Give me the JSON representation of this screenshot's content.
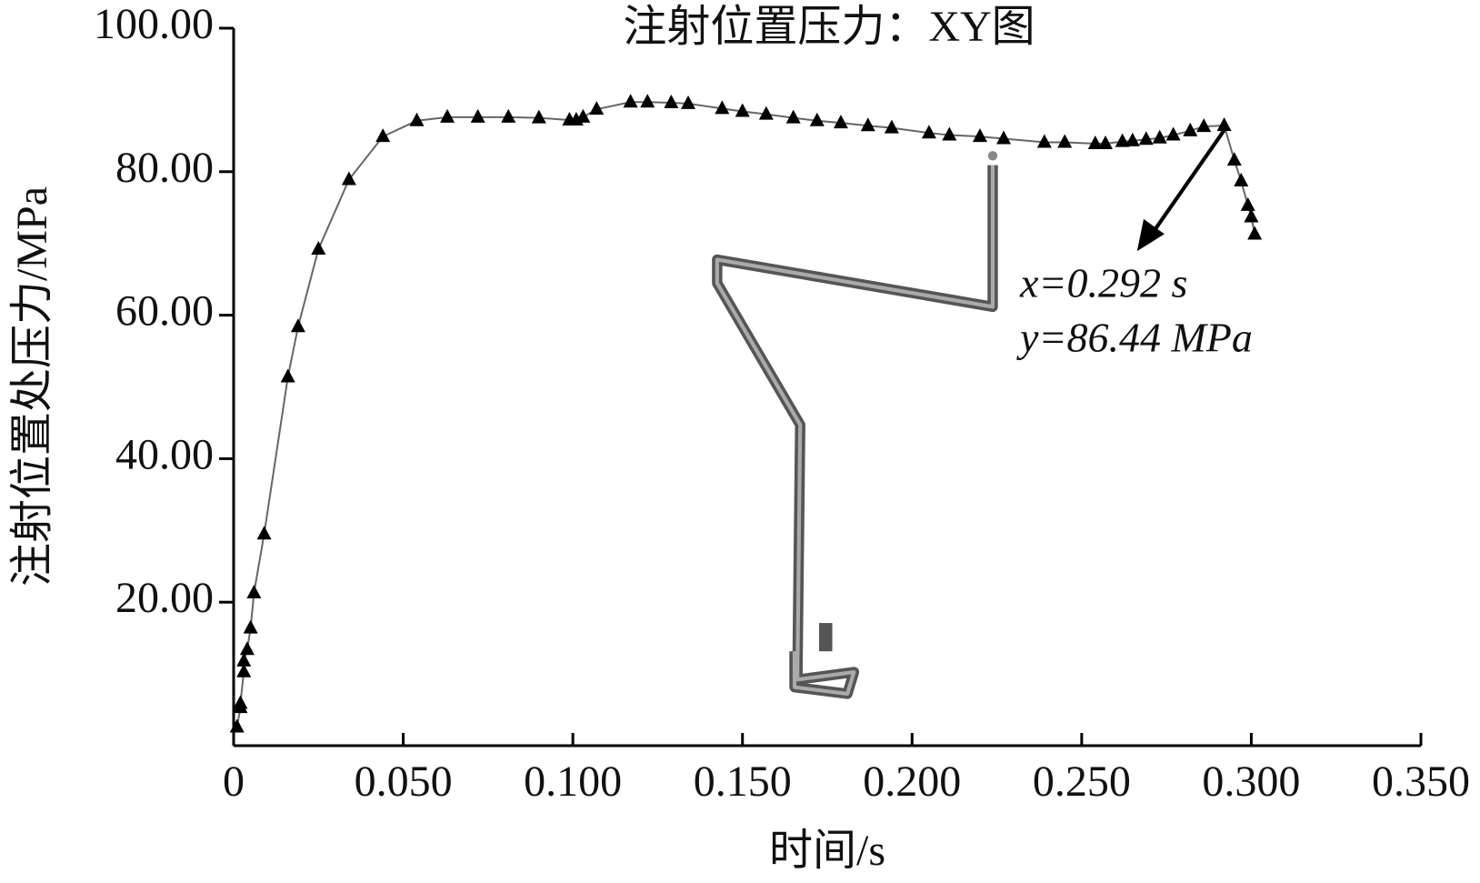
{
  "chart_data": {
    "type": "line",
    "title": "注射位置压力：XY图",
    "x_label": "时间/s",
    "y_label": "注射位置处压力/MPa",
    "annotation_lines": [
      "x=0.292 s",
      "y=86.44 MPa"
    ],
    "xlim": [
      0,
      0.35
    ],
    "ylim": [
      0,
      100
    ],
    "xticks": [
      0,
      {
        "value": 0.05,
        "label": "0.050"
      },
      {
        "value": 0.1,
        "label": "0.100"
      },
      {
        "value": 0.15,
        "label": "0.150"
      },
      {
        "value": 0.2,
        "label": "0.200"
      },
      {
        "value": 0.25,
        "label": "0.250"
      },
      {
        "value": 0.3,
        "label": "0.300"
      },
      {
        "value": 0.35,
        "label": "0.350"
      }
    ],
    "yticks": [
      {
        "value": 20,
        "label": "20.00"
      },
      {
        "value": 40,
        "label": "40.00"
      },
      {
        "value": 60,
        "label": "60.00"
      },
      {
        "value": 80,
        "label": "80.00"
      },
      {
        "value": 100,
        "label": "100.00"
      }
    ],
    "line_color": "#666666",
    "series": [
      {
        "color": "#000000",
        "x": [
          0.001,
          0.002,
          0.002,
          0.003,
          0.003,
          0.004,
          0.005,
          0.006,
          0.009,
          0.016,
          0.019,
          0.025,
          0.034,
          0.044,
          0.054,
          0.063,
          0.072,
          0.081,
          0.09,
          0.099,
          0.101,
          0.103,
          0.107,
          0.117,
          0.122,
          0.129,
          0.134,
          0.144,
          0.15,
          0.157,
          0.165,
          0.172,
          0.179,
          0.187,
          0.194,
          0.205,
          0.211,
          0.22,
          0.227,
          0.239,
          0.245,
          0.254,
          0.257,
          0.262,
          0.265,
          0.269,
          0.273,
          0.277,
          0.282,
          0.286,
          0.292,
          0.295,
          0.297,
          0.299,
          0.3,
          0.301
        ],
        "values": [
          2.6,
          5.3,
          5.9,
          10.3,
          11.8,
          13.4,
          16.4,
          21.3,
          29.5,
          51.4,
          58.4,
          69.2,
          78.9,
          84.9,
          87.1,
          87.6,
          87.6,
          87.6,
          87.5,
          87.2,
          87.2,
          87.6,
          88.7,
          89.7,
          89.7,
          89.6,
          89.5,
          88.8,
          88.4,
          88.0,
          87.5,
          87.1,
          86.8,
          86.4,
          86.1,
          85.4,
          85.1,
          84.9,
          84.6,
          84.1,
          84.1,
          83.9,
          83.9,
          84.2,
          84.3,
          84.5,
          84.7,
          85.1,
          85.7,
          86.3,
          86.44,
          81.6,
          78.7,
          75.3,
          73.7,
          71.3
        ]
      }
    ]
  }
}
